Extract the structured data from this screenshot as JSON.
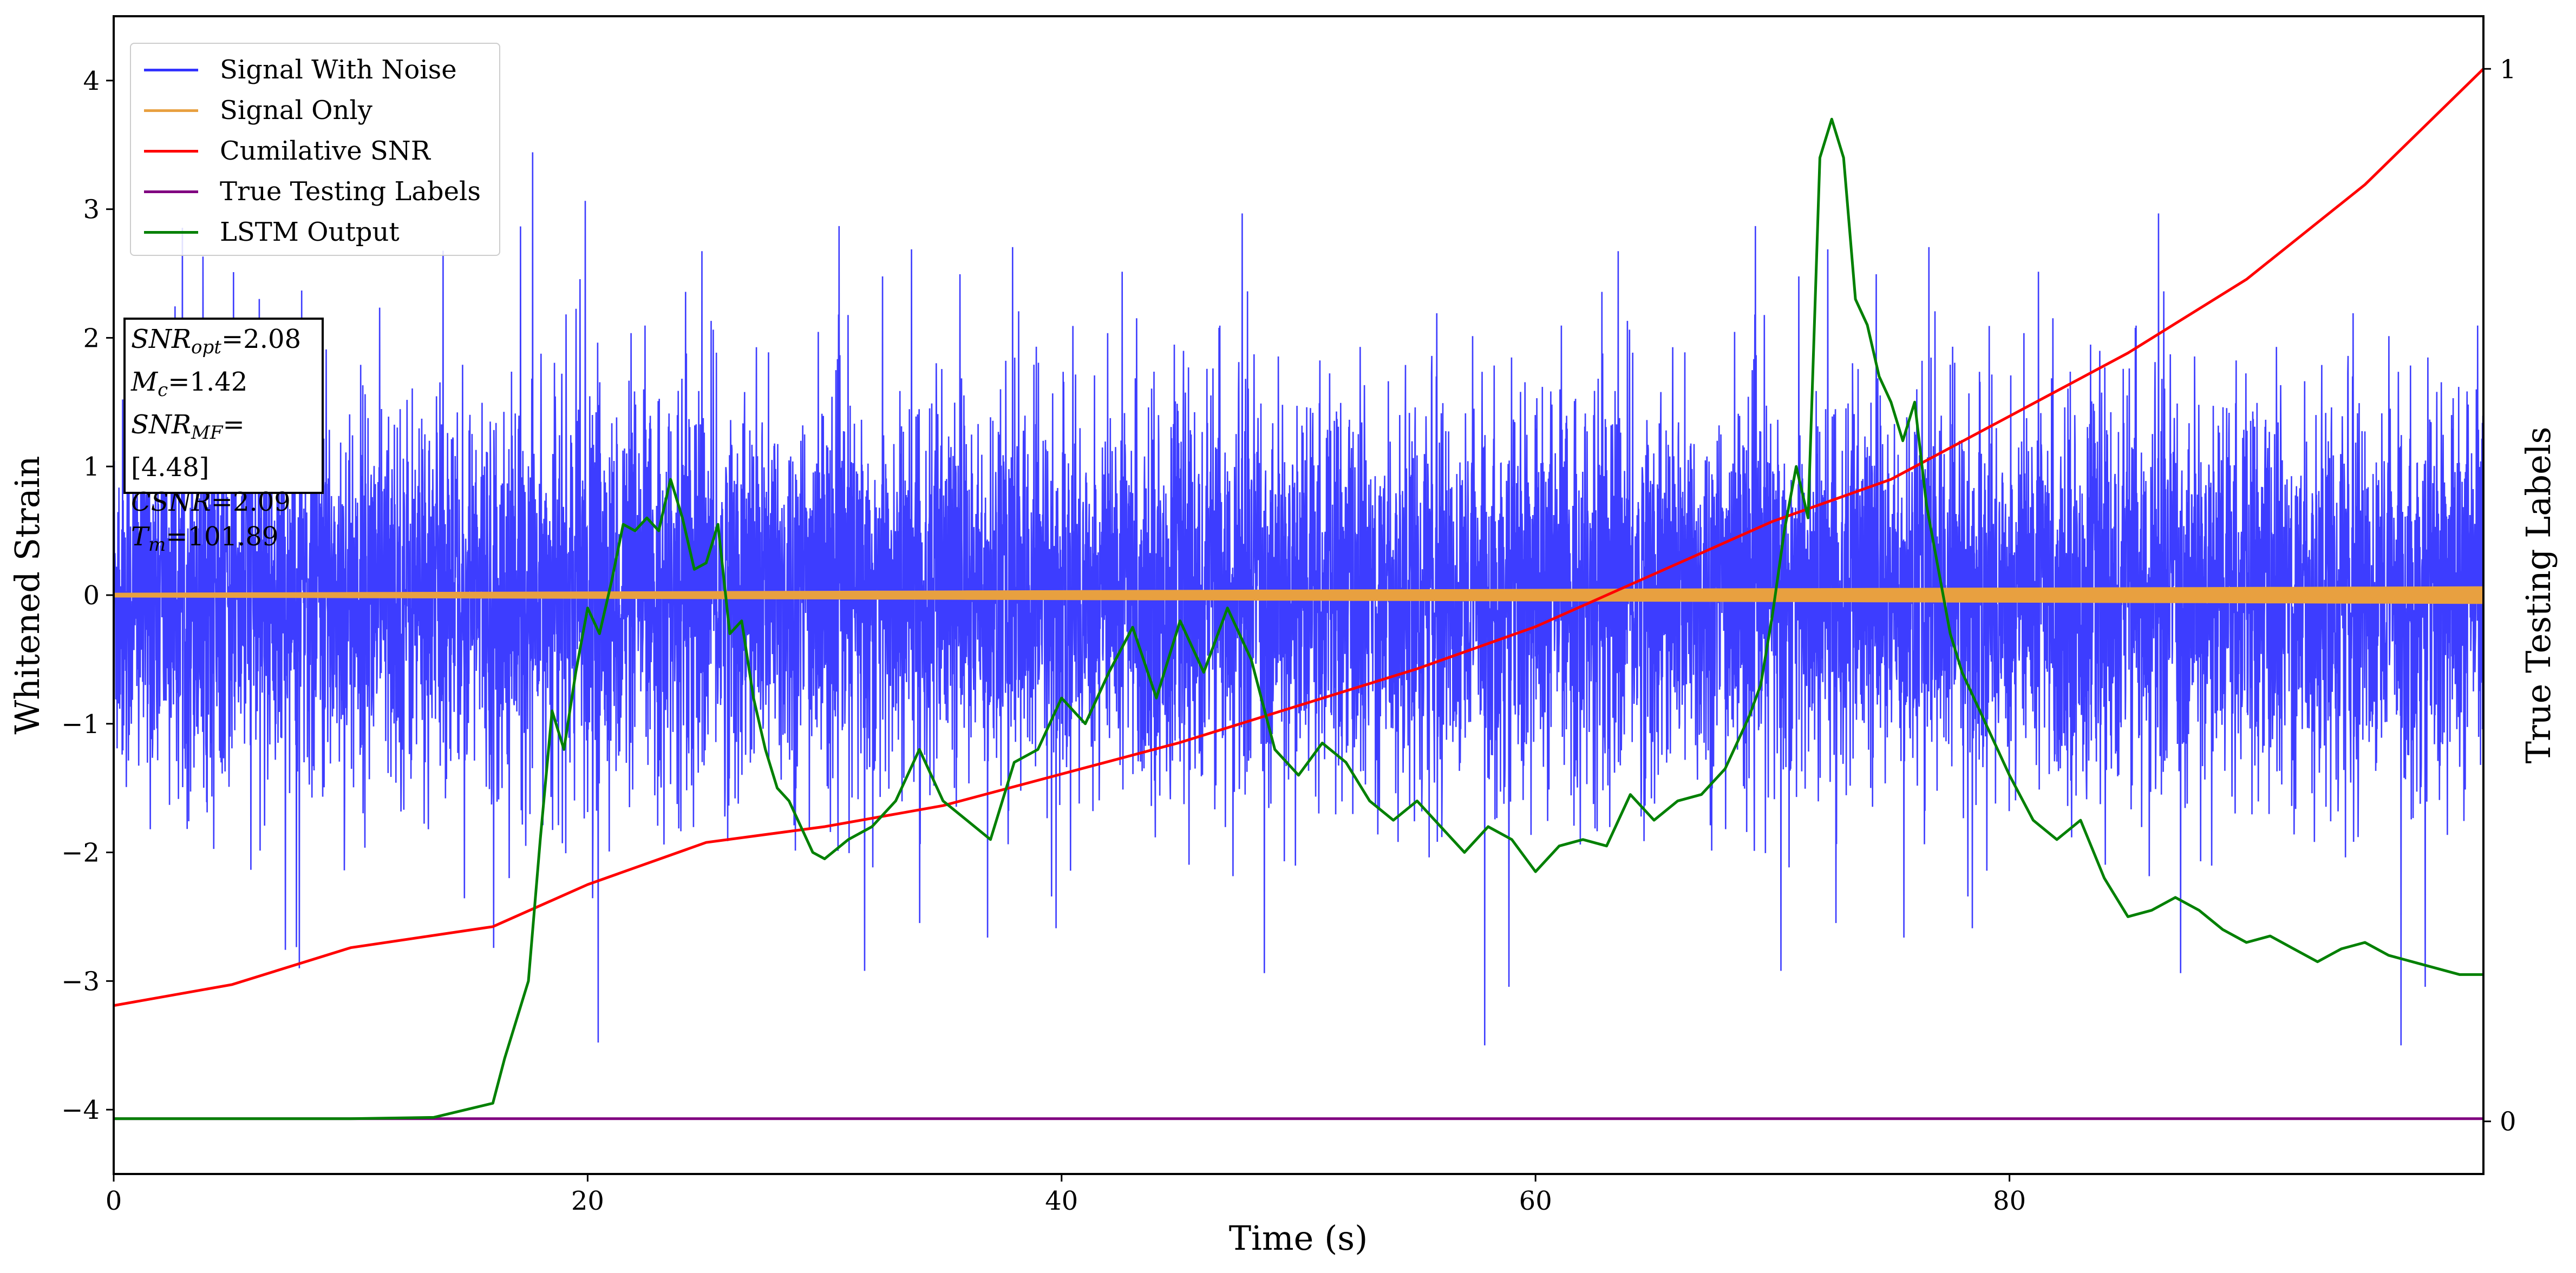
{
  "chart_data": {
    "type": "line",
    "xlabel": "Time (s)",
    "ylabel_left": "Whitened Strain",
    "ylabel_right": "True Testing Labels",
    "xlim": [
      0,
      100
    ],
    "ylim_left": [
      -4.5,
      4.5
    ],
    "ylim_right": [
      -0.05,
      1.05
    ],
    "x_ticks": [
      0,
      20,
      40,
      60,
      80
    ],
    "y_ticks_left": [
      -4,
      -3,
      -2,
      -1,
      0,
      1,
      2,
      3,
      4
    ],
    "y_tick_labels_left": [
      "−4",
      "−3",
      "−2",
      "−1",
      "0",
      "1",
      "2",
      "3",
      "4"
    ],
    "y_ticks_right": [
      0,
      1
    ],
    "legend_position": "upper-left",
    "series": [
      {
        "name": "Signal With Noise",
        "axis": "left",
        "color": "#3333ff",
        "style": "dense-noise",
        "envelope_typical": [
          -1.5,
          1.5
        ],
        "extremes": [
          -3.5,
          4.1
        ]
      },
      {
        "name": "Signal Only",
        "axis": "left",
        "color": "#e8a040",
        "style": "band",
        "amplitude": [
          0.01,
          0.06
        ]
      },
      {
        "name": "Cumilative SNR",
        "axis": "right",
        "color": "#ff0000",
        "x": [
          0,
          5,
          10,
          16,
          20,
          25,
          30,
          35,
          40,
          45,
          50,
          55,
          60,
          65,
          70,
          75,
          80,
          85,
          90,
          95,
          100
        ],
        "y": [
          0.11,
          0.13,
          0.165,
          0.185,
          0.225,
          0.265,
          0.28,
          0.3,
          0.33,
          0.36,
          0.395,
          0.43,
          0.47,
          0.52,
          0.57,
          0.61,
          0.67,
          0.73,
          0.8,
          0.89,
          1.0
        ]
      },
      {
        "name": "True Testing Labels",
        "axis": "left",
        "color": "#800080",
        "x": [
          0,
          100
        ],
        "y": [
          -4.07,
          -4.07
        ]
      },
      {
        "name": "LSTM Output",
        "axis": "left",
        "color": "#008000",
        "x": [
          0,
          10,
          13.5,
          16,
          16.5,
          17.5,
          18,
          18.5,
          19,
          19.5,
          20,
          20.5,
          21,
          21.5,
          22,
          22.5,
          23,
          23.5,
          24,
          24.5,
          25,
          25.5,
          26,
          26.5,
          27,
          27.5,
          28,
          28.5,
          29,
          29.5,
          30,
          31,
          32,
          33,
          34,
          35,
          36,
          37,
          38,
          39,
          40,
          41,
          42,
          43,
          44,
          45,
          46,
          47,
          48,
          49,
          50,
          51,
          52,
          53,
          54,
          55,
          56,
          57,
          58,
          59,
          60,
          61,
          62,
          63,
          64,
          65,
          66,
          67,
          68,
          69,
          69.5,
          70,
          70.5,
          71,
          71.5,
          72,
          72.5,
          73,
          73.5,
          74,
          74.5,
          75,
          75.5,
          76,
          76.5,
          77,
          77.5,
          78,
          79,
          80,
          81,
          82,
          83,
          84,
          85,
          86,
          87,
          88,
          89,
          90,
          91,
          92,
          93,
          94,
          95,
          96,
          97,
          98,
          99,
          100
        ],
        "y": [
          -4.07,
          -4.07,
          -4.06,
          -3.95,
          -3.6,
          -3.0,
          -1.9,
          -0.9,
          -1.2,
          -0.6,
          -0.1,
          -0.3,
          0.1,
          0.55,
          0.5,
          0.6,
          0.5,
          0.9,
          0.6,
          0.2,
          0.25,
          0.55,
          -0.3,
          -0.2,
          -0.8,
          -1.2,
          -1.5,
          -1.6,
          -1.8,
          -2.0,
          -2.05,
          -1.9,
          -1.8,
          -1.6,
          -1.2,
          -1.6,
          -1.75,
          -1.9,
          -1.3,
          -1.2,
          -0.8,
          -1.0,
          -0.6,
          -0.25,
          -0.8,
          -0.2,
          -0.6,
          -0.1,
          -0.5,
          -1.2,
          -1.4,
          -1.15,
          -1.3,
          -1.6,
          -1.75,
          -1.6,
          -1.8,
          -2.0,
          -1.8,
          -1.9,
          -2.15,
          -1.95,
          -1.9,
          -1.95,
          -1.55,
          -1.75,
          -1.6,
          -1.55,
          -1.35,
          -0.95,
          -0.7,
          -0.15,
          0.5,
          1.0,
          0.6,
          3.4,
          3.7,
          3.4,
          2.3,
          2.1,
          1.7,
          1.5,
          1.2,
          1.5,
          0.7,
          0.2,
          -0.3,
          -0.6,
          -1.0,
          -1.4,
          -1.75,
          -1.9,
          -1.75,
          -2.2,
          -2.5,
          -2.45,
          -2.35,
          -2.45,
          -2.6,
          -2.7,
          -2.65,
          -2.75,
          -2.85,
          -2.75,
          -2.7,
          -2.8,
          -2.85,
          -2.9,
          -2.95,
          -2.95
        ]
      }
    ],
    "annotation_box": {
      "snr_opt_label": "SNR",
      "snr_opt_sub": "opt",
      "snr_opt_value": "=2.08",
      "mc_label": "M",
      "mc_sub": "c",
      "mc_value": "=1.42",
      "snr_mf_label": "SNR",
      "snr_mf_sub": "MF",
      "snr_mf_value": "=[4.48]",
      "csnr_label": "CSNR",
      "csnr_value": "=2.09",
      "tm_label": "T",
      "tm_sub": "m",
      "tm_value": "=101.89"
    }
  }
}
